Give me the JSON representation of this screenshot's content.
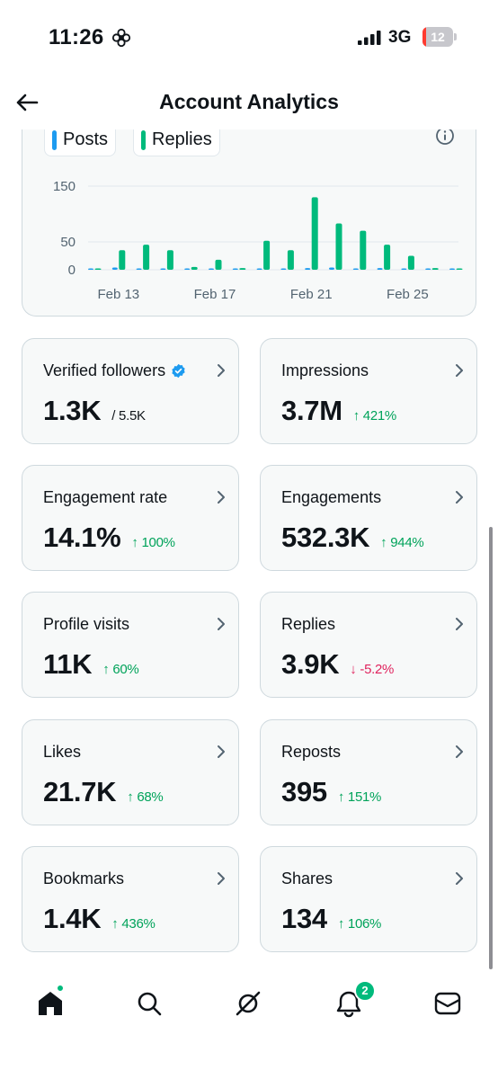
{
  "status_bar": {
    "time": "11:26",
    "network": "3G",
    "battery": "12",
    "battery_level": 0.12
  },
  "header": {
    "title": "Account Analytics",
    "back_icon": "arrow-left-icon"
  },
  "chart_data": {
    "type": "bar",
    "categories": [
      "Feb 12",
      "Feb 13",
      "Feb 14",
      "Feb 15",
      "Feb 16",
      "Feb 17",
      "Feb 18",
      "Feb 19",
      "Feb 20",
      "Feb 21",
      "Feb 22",
      "Feb 23",
      "Feb 24",
      "Feb 25",
      "Feb 26",
      "Feb 27"
    ],
    "series": [
      {
        "name": "Posts",
        "color": "#1d9bf0",
        "values": [
          1,
          4,
          2,
          0,
          0,
          1,
          0,
          2,
          1,
          3,
          4,
          1,
          3,
          2,
          1,
          0
        ]
      },
      {
        "name": "Replies",
        "color": "#00ba7c",
        "values": [
          0,
          35,
          45,
          35,
          5,
          18,
          3,
          52,
          35,
          130,
          83,
          70,
          45,
          25,
          3,
          0
        ]
      }
    ],
    "x_tick_labels": [
      "Feb 13",
      "Feb 17",
      "Feb 21",
      "Feb 25"
    ],
    "y_ticks": [
      "150",
      "50",
      "0"
    ],
    "ylim": [
      0,
      150
    ],
    "legend": "top-left",
    "grid": true
  },
  "metrics": [
    {
      "label": "Verified followers",
      "value": "1.3K",
      "sub": "/ 5.5K",
      "change": "",
      "direction": "none",
      "verified": true
    },
    {
      "label": "Impressions",
      "value": "3.7M",
      "sub": "",
      "change": "421%",
      "direction": "up",
      "verified": false
    },
    {
      "label": "Engagement rate",
      "value": "14.1%",
      "sub": "",
      "change": "100%",
      "direction": "up",
      "verified": false
    },
    {
      "label": "Engagements",
      "value": "532.3K",
      "sub": "",
      "change": "944%",
      "direction": "up",
      "verified": false
    },
    {
      "label": "Profile visits",
      "value": "11K",
      "sub": "",
      "change": "60%",
      "direction": "up",
      "verified": false
    },
    {
      "label": "Replies",
      "value": "3.9K",
      "sub": "",
      "change": "-5.2%",
      "direction": "down",
      "verified": false
    },
    {
      "label": "Likes",
      "value": "21.7K",
      "sub": "",
      "change": "68%",
      "direction": "up",
      "verified": false
    },
    {
      "label": "Reposts",
      "value": "395",
      "sub": "",
      "change": "151%",
      "direction": "up",
      "verified": false
    },
    {
      "label": "Bookmarks",
      "value": "1.4K",
      "sub": "",
      "change": "436%",
      "direction": "up",
      "verified": false
    },
    {
      "label": "Shares",
      "value": "134",
      "sub": "",
      "change": "106%",
      "direction": "up",
      "verified": false
    }
  ],
  "bottom_nav": {
    "items": [
      "home-icon",
      "search-icon",
      "grok-icon",
      "notifications-icon",
      "messages-icon"
    ],
    "notification_count": "2"
  },
  "colors": {
    "accent": "#1d9bf0",
    "positive": "#00a35a",
    "negative": "#e0245e",
    "card_bg": "#f7f9f9",
    "border": "#cfd9de"
  }
}
